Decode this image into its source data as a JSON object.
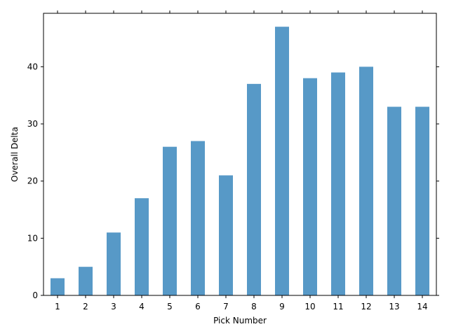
{
  "chart_data": {
    "type": "bar",
    "categories": [
      "1",
      "2",
      "3",
      "4",
      "5",
      "6",
      "7",
      "8",
      "9",
      "10",
      "11",
      "12",
      "13",
      "14"
    ],
    "values": [
      3,
      5,
      11,
      17,
      26,
      27,
      21,
      37,
      47,
      38,
      39,
      40,
      33,
      33
    ],
    "xlabel": "Pick Number",
    "ylabel": "Overall Delta",
    "ylim": [
      0,
      49.35
    ],
    "yticks": [
      0,
      10,
      20,
      30,
      40
    ],
    "bar_color": "#1f77b4",
    "bar_opacity": 0.75,
    "grid": false,
    "legend": "none"
  }
}
